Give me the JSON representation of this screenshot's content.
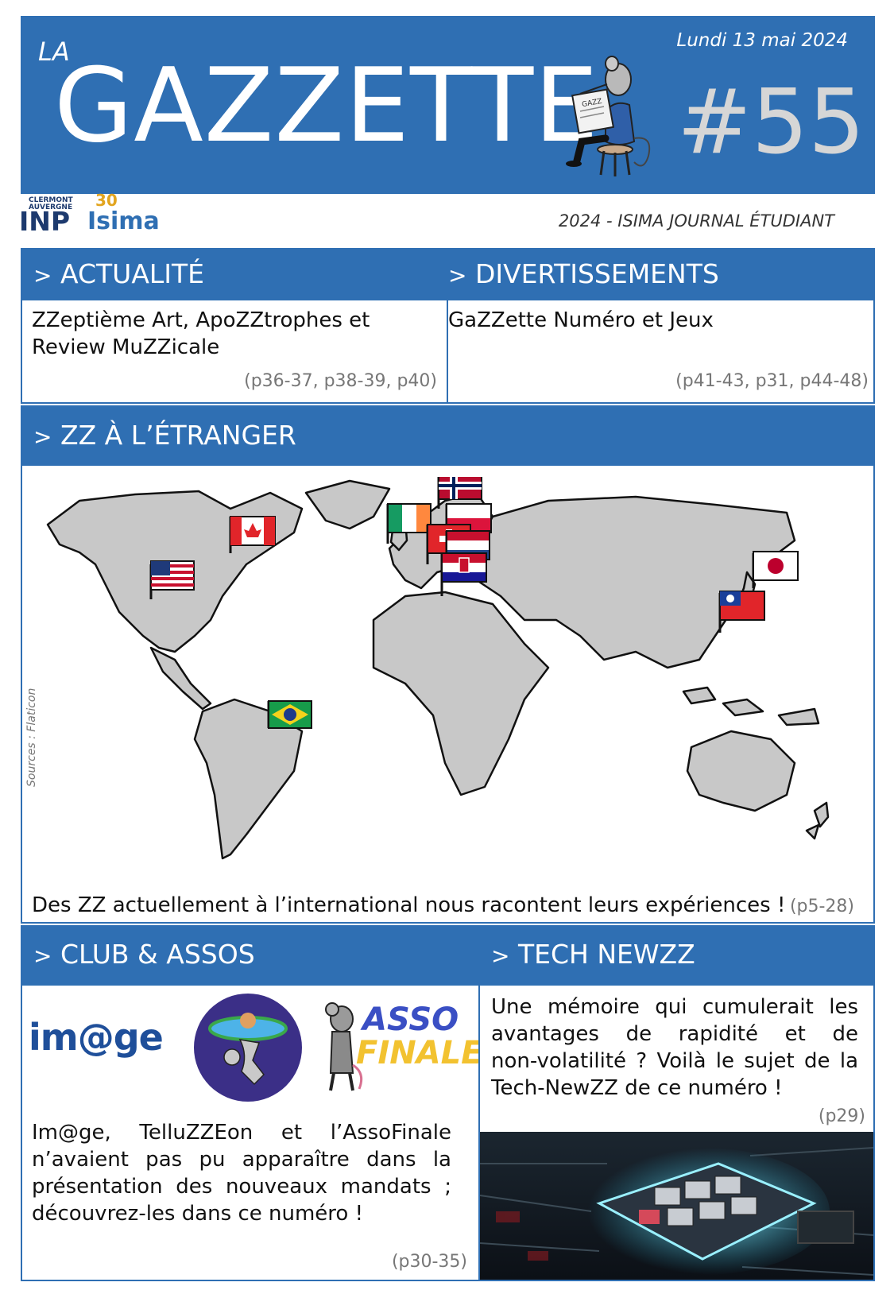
{
  "header": {
    "la": "LA",
    "title": "GAZZETTE",
    "date": "Lundi 13 mai 2024",
    "issue": "#55",
    "mascot_paper": "GAZZ"
  },
  "logos": {
    "inp_top1": "CLERMONT",
    "inp_top2": "AUVERGNE",
    "inp_main": "INP",
    "isima_thirty": "30",
    "isima": "Isima"
  },
  "journal_label": "2024 - ISIMA JOURNAL ÉTUDIANT",
  "sections": {
    "actualite": {
      "prefix": ">",
      "title": "ACTUALITÉ",
      "text": "ZZeptième Art, ApoZZtrophes et Review MuZZicale",
      "pages": "(p36-37, p38-39, p40)"
    },
    "divertissements": {
      "prefix": ">",
      "title": "DIVERTISSEMENTS",
      "text": "GaZZette Numéro et Jeux",
      "pages": "(p41-43, p31, p44-48)"
    },
    "etranger": {
      "prefix": ">",
      "title": "ZZ À L’ÉTRANGER",
      "sources": "Sources : Flaticon",
      "text": "Des ZZ actuellement à l’international nous racontent leurs expériences !",
      "pages": "(p5-28)"
    },
    "club": {
      "prefix": ">",
      "title": "CLUB & ASSOS",
      "image_logo": "im@ge",
      "asso_line1": "ASSO",
      "asso_line2": "FINALE",
      "text_lines": [
        "Im@ge, TelluZZEon et l’AssoFinale",
        "n’avaient pas pu apparaître dans la",
        "présentation des nouveaux mandats ;",
        "découvrez-les dans ce numéro !"
      ],
      "pages": "(p30-35)"
    },
    "tech": {
      "prefix": ">",
      "title": "TECH NEWZZ",
      "text_lines": [
        "Une mémoire qui cumulerait les",
        "avantages de rapidité et de",
        "non-volatilité ? Voilà le sujet de la",
        "Tech-NewZZ de ce numéro !"
      ],
      "pages": "(p29)"
    }
  },
  "colors": {
    "brand_blue": "#2f6fb3",
    "issue_grey": "#d6d6d6",
    "map_land": "#c8c8c8",
    "asso_yellow": "#f2c230"
  },
  "map_flags": [
    "usa",
    "canada",
    "brazil",
    "ireland",
    "norway",
    "poland",
    "switzerland",
    "netherlands",
    "croatia",
    "japan",
    "taiwan"
  ]
}
